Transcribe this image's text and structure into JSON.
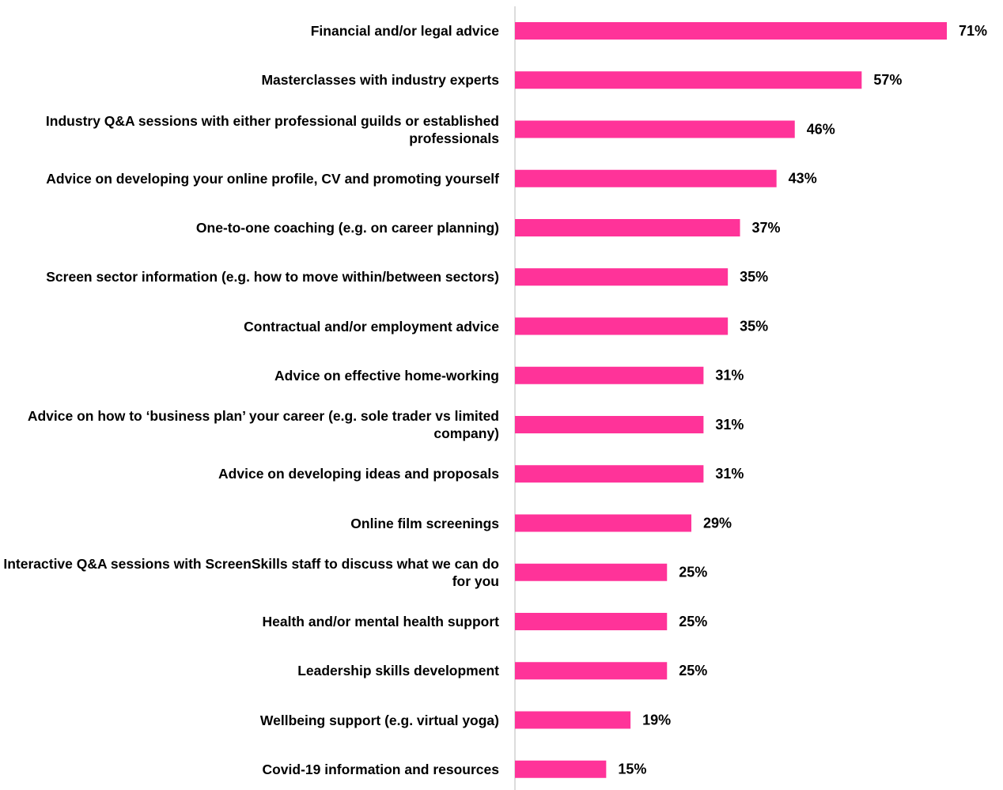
{
  "chart_data": {
    "type": "barh",
    "color": "#ff3399",
    "categories": [
      "Financial and/or legal advice",
      "Masterclasses with industry experts",
      "Industry Q&A sessions with either professional guilds or established professionals",
      "Advice on developing your online profile, CV and promoting yourself",
      "One-to-one coaching (e.g. on career planning)",
      "Screen sector information (e.g. how to move within/between sectors)",
      "Contractual and/or employment advice",
      "Advice on effective home-working",
      "Advice on how to ‘business plan’ your career (e.g. sole trader vs limited company)",
      "Advice on developing ideas and proposals",
      "Online film screenings",
      "Interactive Q&A sessions with ScreenSkills staff to discuss what we can do for you",
      "Health and/or mental health support",
      "Leadership skills development",
      "Wellbeing support (e.g. virtual yoga)",
      "Covid-19 information and resources"
    ],
    "values": [
      71,
      57,
      46,
      43,
      37,
      35,
      35,
      31,
      31,
      31,
      29,
      25,
      25,
      25,
      19,
      15
    ],
    "value_labels": [
      "71%",
      "57%",
      "46%",
      "43%",
      "37%",
      "35%",
      "35%",
      "31%",
      "31%",
      "31%",
      "29%",
      "25%",
      "25%",
      "25%",
      "19%",
      "15%"
    ]
  }
}
